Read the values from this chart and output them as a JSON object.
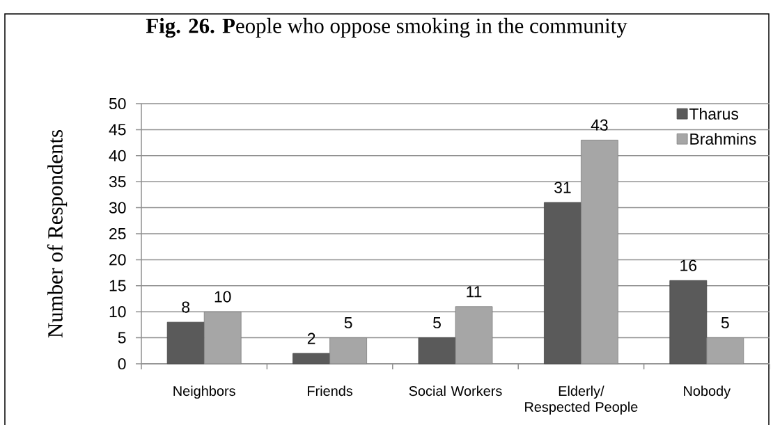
{
  "chart_data": {
    "type": "bar",
    "title": "**Fig. 26.** **P**eople who oppose smoking in the community",
    "ylabel": "Number of Respondents",
    "categories": [
      "Neighbors",
      "Friends",
      "Social Workers",
      "Elderly/ Respected People",
      "Nobody"
    ],
    "series": [
      {
        "name": "Tharus",
        "color": "#5a5a5a",
        "values": [
          8,
          2,
          5,
          31,
          16
        ]
      },
      {
        "name": "Brahmins",
        "color": "#a6a6a6",
        "values": [
          10,
          5,
          11,
          43,
          5
        ]
      }
    ],
    "ylim": [
      0,
      50
    ],
    "yticks": [
      0,
      5,
      10,
      15,
      20,
      25,
      30,
      35,
      40,
      45,
      50
    ],
    "grid": "y",
    "legend": "top right",
    "data_labels": true
  }
}
